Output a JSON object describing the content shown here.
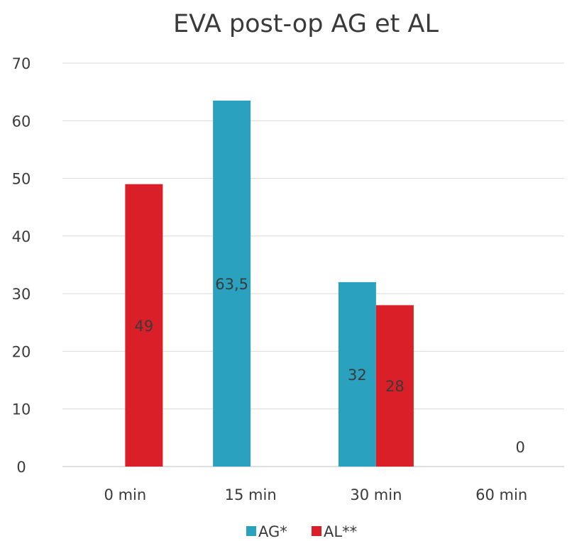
{
  "chart_data": {
    "type": "bar",
    "title": "EVA post-op AG et AL",
    "categories": [
      "0 min",
      "15 min",
      "30 min",
      "60 min"
    ],
    "series": [
      {
        "name": "AG*",
        "color": "#2aa2bf",
        "values": [
          null,
          63.5,
          32,
          null
        ],
        "data_labels": [
          "",
          "63,5",
          "32",
          ""
        ]
      },
      {
        "name": "AL**",
        "color": "#da1f28",
        "values": [
          49,
          null,
          28,
          0
        ],
        "data_labels": [
          "49",
          "",
          "28",
          "0"
        ]
      }
    ],
    "ylim": [
      0,
      70
    ],
    "yticks": [
      "0",
      "10",
      "20",
      "30",
      "40",
      "50",
      "60",
      "70"
    ],
    "xlabel": "",
    "ylabel": "",
    "grid": true,
    "legend_position": "bottom"
  }
}
